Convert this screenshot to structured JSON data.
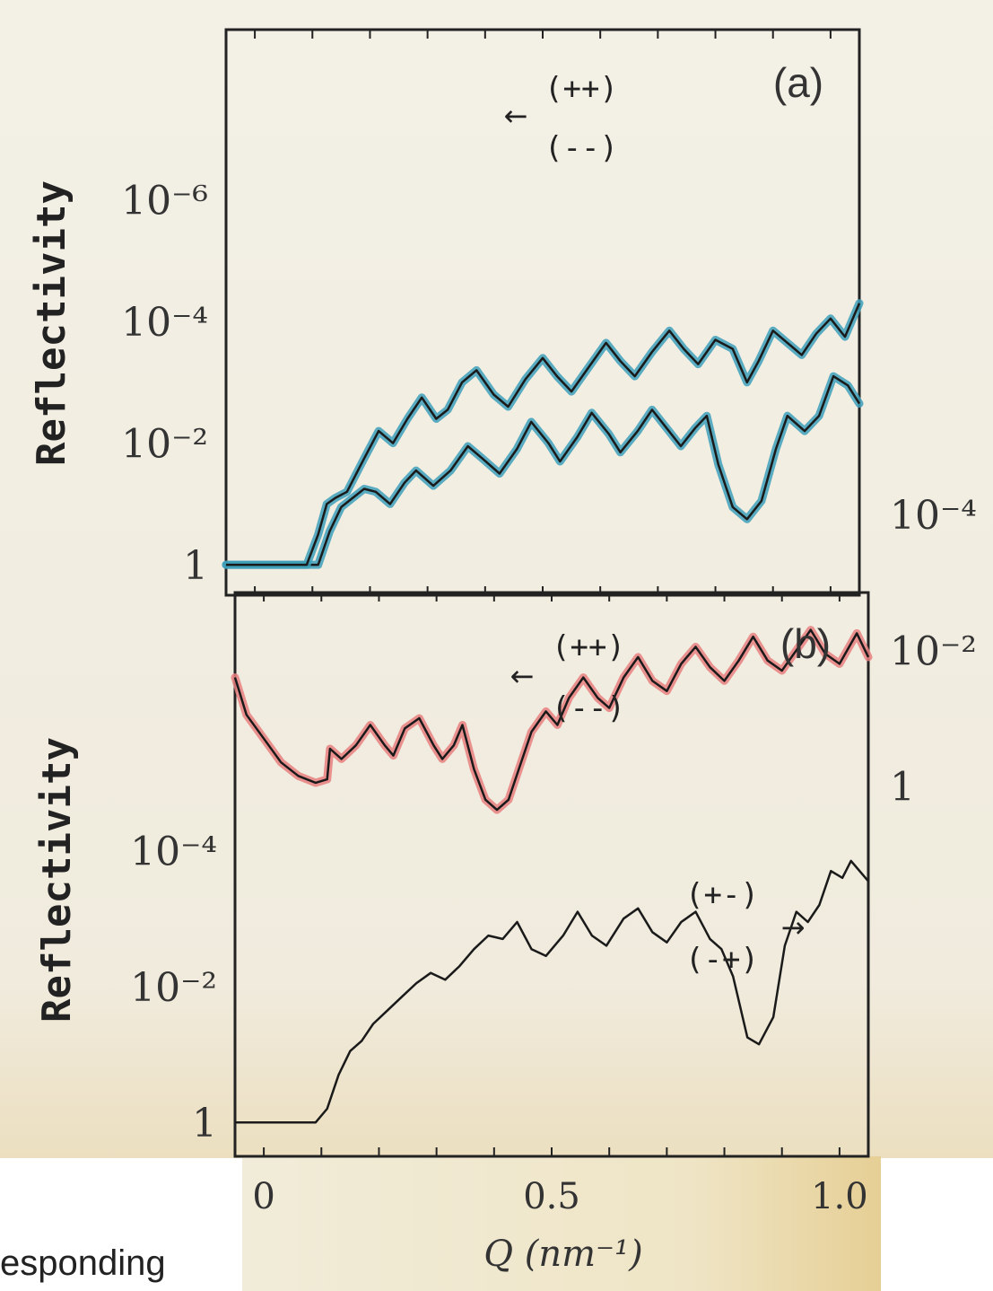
{
  "page_fragment": "esponding",
  "chart_data": [
    {
      "panel": "(a)",
      "type": "line",
      "scale": "log",
      "ylabel": "Reflectivity",
      "xlabel": "",
      "xlim": [
        -0.05,
        1.05
      ],
      "ylim_log10": [
        -8.8,
        0.5
      ],
      "y_ticks": [
        "1",
        "10⁻²",
        "10⁻⁴",
        "10⁻⁶"
      ],
      "y_tick_values_log10": [
        0,
        -2,
        -4,
        -6
      ],
      "annotation_top": "(++)",
      "annotation_bottom": "(--)",
      "annotation_arrow": "←",
      "series": [
        {
          "label": "(++)",
          "color": "#3d9fba",
          "points": [
            [
              -0.05,
              0
            ],
            [
              0.09,
              0
            ],
            [
              0.11,
              0
            ],
            [
              0.13,
              -0.55
            ],
            [
              0.15,
              -0.95
            ],
            [
              0.17,
              -1.1
            ],
            [
              0.19,
              -1.25
            ],
            [
              0.21,
              -1.2
            ],
            [
              0.235,
              -1.0
            ],
            [
              0.26,
              -1.35
            ],
            [
              0.28,
              -1.55
            ],
            [
              0.31,
              -1.3
            ],
            [
              0.34,
              -1.55
            ],
            [
              0.37,
              -1.95
            ],
            [
              0.395,
              -1.75
            ],
            [
              0.425,
              -1.5
            ],
            [
              0.455,
              -1.9
            ],
            [
              0.48,
              -2.35
            ],
            [
              0.51,
              -2.0
            ],
            [
              0.53,
              -1.7
            ],
            [
              0.56,
              -2.1
            ],
            [
              0.585,
              -2.5
            ],
            [
              0.615,
              -2.15
            ],
            [
              0.635,
              -1.85
            ],
            [
              0.665,
              -2.2
            ],
            [
              0.69,
              -2.55
            ],
            [
              0.715,
              -2.25
            ],
            [
              0.74,
              -1.95
            ],
            [
              0.765,
              -2.25
            ],
            [
              0.785,
              -2.45
            ],
            [
              0.805,
              -1.65
            ],
            [
              0.83,
              -0.95
            ],
            [
              0.855,
              -0.75
            ],
            [
              0.88,
              -1.05
            ],
            [
              0.905,
              -1.9
            ],
            [
              0.925,
              -2.45
            ],
            [
              0.955,
              -2.2
            ],
            [
              0.98,
              -2.45
            ],
            [
              1.005,
              -3.1
            ],
            [
              1.03,
              -2.95
            ],
            [
              1.05,
              -2.65
            ]
          ]
        },
        {
          "label": "(--)",
          "color": "#3d9fba",
          "points": [
            [
              -0.05,
              0
            ],
            [
              0.09,
              0
            ],
            [
              0.11,
              -0.5
            ],
            [
              0.125,
              -1.0
            ],
            [
              0.14,
              -1.1
            ],
            [
              0.16,
              -1.2
            ],
            [
              0.19,
              -1.75
            ],
            [
              0.215,
              -2.2
            ],
            [
              0.24,
              -2.0
            ],
            [
              0.265,
              -2.4
            ],
            [
              0.29,
              -2.75
            ],
            [
              0.315,
              -2.4
            ],
            [
              0.335,
              -2.55
            ],
            [
              0.36,
              -3.0
            ],
            [
              0.385,
              -3.2
            ],
            [
              0.415,
              -2.8
            ],
            [
              0.44,
              -2.6
            ],
            [
              0.47,
              -3.05
            ],
            [
              0.5,
              -3.4
            ],
            [
              0.525,
              -3.1
            ],
            [
              0.55,
              -2.85
            ],
            [
              0.58,
              -3.25
            ],
            [
              0.61,
              -3.65
            ],
            [
              0.635,
              -3.35
            ],
            [
              0.66,
              -3.1
            ],
            [
              0.69,
              -3.5
            ],
            [
              0.72,
              -3.85
            ],
            [
              0.745,
              -3.55
            ],
            [
              0.77,
              -3.3
            ],
            [
              0.8,
              -3.7
            ],
            [
              0.83,
              -3.55
            ],
            [
              0.855,
              -3.0
            ],
            [
              0.875,
              -3.35
            ],
            [
              0.9,
              -3.85
            ],
            [
              0.925,
              -3.65
            ],
            [
              0.95,
              -3.45
            ],
            [
              0.975,
              -3.8
            ],
            [
              1.0,
              -4.05
            ],
            [
              1.025,
              -3.75
            ],
            [
              1.05,
              -4.3
            ]
          ]
        }
      ]
    },
    {
      "panel": "(b)",
      "type": "line",
      "scale": "log",
      "ylabel": "Reflectivity",
      "xlabel": "Q (nm⁻¹)",
      "x_ticks": [
        "0",
        "0.5",
        "1.0"
      ],
      "x_tick_values": [
        0,
        0.5,
        1.0
      ],
      "xlim": [
        -0.05,
        1.05
      ],
      "ylim_log10": [
        -7.8,
        0.5
      ],
      "y_ticks_left": [
        "1",
        "10⁻²",
        "10⁻⁴"
      ],
      "y_tick_values_left_log10": [
        0,
        -2,
        -4
      ],
      "y_ticks_right": [
        "1",
        "10⁻²",
        "10⁻⁴"
      ],
      "y_tick_values_right_log10": [
        -4.95,
        -6.95,
        -8.95
      ],
      "annotation_top": "(++)",
      "annotation_bottom": "(--)",
      "annotation_arrow": "←",
      "annotation_spin_top": "(+-)",
      "annotation_spin_bottom": "(-+)",
      "annotation_spin_arrow": "→",
      "series": [
        {
          "label": "(++)",
          "color": "#1a1a1a",
          "points": [
            [
              -0.05,
              0
            ],
            [
              0.09,
              0
            ],
            [
              0.11,
              -0.2
            ],
            [
              0.13,
              -0.7
            ],
            [
              0.15,
              -1.05
            ],
            [
              0.17,
              -1.2
            ],
            [
              0.19,
              -1.45
            ],
            [
              0.215,
              -1.65
            ],
            [
              0.24,
              -1.85
            ],
            [
              0.265,
              -2.05
            ],
            [
              0.29,
              -2.2
            ],
            [
              0.315,
              -2.1
            ],
            [
              0.34,
              -2.3
            ],
            [
              0.365,
              -2.55
            ],
            [
              0.39,
              -2.75
            ],
            [
              0.415,
              -2.7
            ],
            [
              0.44,
              -2.95
            ],
            [
              0.465,
              -2.55
            ],
            [
              0.49,
              -2.45
            ],
            [
              0.52,
              -2.75
            ],
            [
              0.545,
              -3.1
            ],
            [
              0.57,
              -2.75
            ],
            [
              0.595,
              -2.6
            ],
            [
              0.625,
              -3.0
            ],
            [
              0.65,
              -3.15
            ],
            [
              0.675,
              -2.8
            ],
            [
              0.7,
              -2.65
            ],
            [
              0.725,
              -2.95
            ],
            [
              0.75,
              -3.1
            ],
            [
              0.775,
              -2.7
            ],
            [
              0.795,
              -2.55
            ],
            [
              0.815,
              -2.15
            ],
            [
              0.84,
              -1.25
            ],
            [
              0.86,
              -1.15
            ],
            [
              0.885,
              -1.55
            ],
            [
              0.905,
              -2.6
            ],
            [
              0.925,
              -3.1
            ],
            [
              0.945,
              -2.95
            ],
            [
              0.965,
              -3.2
            ],
            [
              0.985,
              -3.7
            ],
            [
              1.005,
              -3.6
            ],
            [
              1.02,
              -3.85
            ],
            [
              1.05,
              -3.55
            ]
          ]
        },
        {
          "label": "(+-)",
          "color": "#e88080",
          "points": [
            [
              -0.05,
              -6.55
            ],
            [
              -0.03,
              -6.0
            ],
            [
              0.0,
              -5.65
            ],
            [
              0.03,
              -5.3
            ],
            [
              0.06,
              -5.1
            ],
            [
              0.09,
              -5.0
            ],
            [
              0.11,
              -5.05
            ],
            [
              0.115,
              -5.5
            ],
            [
              0.135,
              -5.35
            ],
            [
              0.16,
              -5.55
            ],
            [
              0.185,
              -5.85
            ],
            [
              0.21,
              -5.55
            ],
            [
              0.225,
              -5.4
            ],
            [
              0.245,
              -5.8
            ],
            [
              0.27,
              -5.95
            ],
            [
              0.295,
              -5.55
            ],
            [
              0.31,
              -5.35
            ],
            [
              0.33,
              -5.55
            ],
            [
              0.345,
              -5.85
            ],
            [
              0.365,
              -5.2
            ],
            [
              0.385,
              -4.75
            ],
            [
              0.405,
              -4.6
            ],
            [
              0.425,
              -4.75
            ],
            [
              0.445,
              -5.25
            ],
            [
              0.465,
              -5.75
            ],
            [
              0.49,
              -6.05
            ],
            [
              0.51,
              -5.85
            ],
            [
              0.53,
              -6.25
            ],
            [
              0.555,
              -6.55
            ],
            [
              0.58,
              -6.25
            ],
            [
              0.6,
              -6.1
            ],
            [
              0.625,
              -6.55
            ],
            [
              0.65,
              -6.85
            ],
            [
              0.675,
              -6.5
            ],
            [
              0.7,
              -6.35
            ],
            [
              0.725,
              -6.75
            ],
            [
              0.75,
              -7.0
            ],
            [
              0.775,
              -6.7
            ],
            [
              0.8,
              -6.5
            ],
            [
              0.825,
              -6.8
            ],
            [
              0.85,
              -7.15
            ],
            [
              0.875,
              -6.8
            ],
            [
              0.9,
              -6.65
            ],
            [
              0.925,
              -6.95
            ],
            [
              0.95,
              -7.25
            ],
            [
              0.975,
              -6.9
            ],
            [
              1.0,
              -6.75
            ],
            [
              1.03,
              -7.2
            ],
            [
              1.05,
              -6.85
            ]
          ]
        }
      ]
    }
  ]
}
